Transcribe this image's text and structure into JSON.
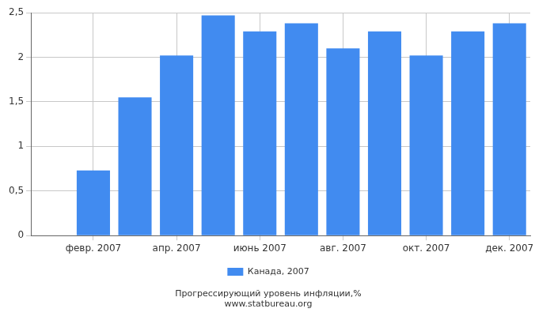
{
  "chart_data": {
    "type": "bar",
    "title": "Прогрессирующий уровень инфляции,%",
    "subtitle": "www.statbureau.org",
    "categories": [
      null,
      "февр. 2007",
      null,
      "апр. 2007",
      null,
      "июнь 2007",
      null,
      "авг. 2007",
      null,
      "окт. 2007",
      null,
      "дек. 2007"
    ],
    "series": [
      {
        "name": "Канада, 2007",
        "color": "#418bf0",
        "values": [
          null,
          0.73,
          1.55,
          2.02,
          2.47,
          2.29,
          2.38,
          2.1,
          2.29,
          2.02,
          2.29,
          2.38
        ]
      }
    ],
    "ylim": [
      0,
      2.5
    ],
    "yticks": [
      0,
      {
        "value": 0.5,
        "label": "0,5"
      },
      1,
      {
        "value": 1.5,
        "label": "1,5"
      },
      2,
      {
        "value": 2.5,
        "label": "2,5"
      }
    ],
    "grid": true,
    "legend": "bottom"
  }
}
